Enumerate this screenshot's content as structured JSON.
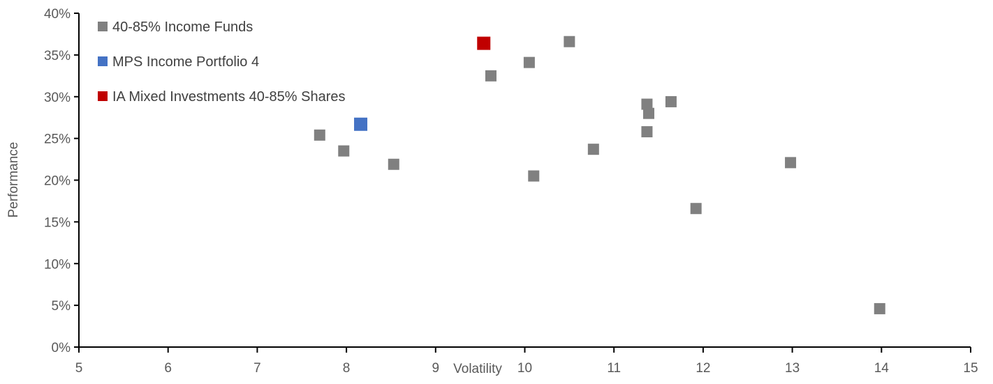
{
  "chart_data": {
    "type": "scatter",
    "xlabel": "Volatility",
    "ylabel": "Performance",
    "xlim": [
      5,
      15
    ],
    "ylim": [
      0,
      40
    ],
    "x_ticks": [
      "5",
      "6",
      "7",
      "8",
      "9",
      "10",
      "11",
      "12",
      "13",
      "14",
      "15"
    ],
    "y_ticks": [
      "0%",
      "5%",
      "10%",
      "15%",
      "20%",
      "25%",
      "30%",
      "35%",
      "40%"
    ],
    "grid": false,
    "legend_position": "top-left",
    "series": [
      {
        "name": "40-85% Income Funds",
        "color": "#808080",
        "points": [
          {
            "x": 7.7,
            "y": 25.4
          },
          {
            "x": 7.97,
            "y": 23.5
          },
          {
            "x": 8.53,
            "y": 21.9
          },
          {
            "x": 9.62,
            "y": 32.5
          },
          {
            "x": 10.05,
            "y": 34.1
          },
          {
            "x": 10.1,
            "y": 20.5
          },
          {
            "x": 10.5,
            "y": 36.6
          },
          {
            "x": 10.77,
            "y": 23.7
          },
          {
            "x": 11.37,
            "y": 29.1
          },
          {
            "x": 11.39,
            "y": 28.0
          },
          {
            "x": 11.37,
            "y": 25.8
          },
          {
            "x": 11.64,
            "y": 29.4
          },
          {
            "x": 11.92,
            "y": 16.6
          },
          {
            "x": 12.98,
            "y": 22.1
          },
          {
            "x": 13.98,
            "y": 4.6
          }
        ]
      },
      {
        "name": "MPS Income Portfolio 4",
        "color": "#4472c4",
        "points": [
          {
            "x": 8.16,
            "y": 26.7
          }
        ]
      },
      {
        "name": "IA Mixed Investments 40-85% Shares",
        "color": "#c00000",
        "points": [
          {
            "x": 9.54,
            "y": 36.4
          }
        ]
      }
    ]
  }
}
